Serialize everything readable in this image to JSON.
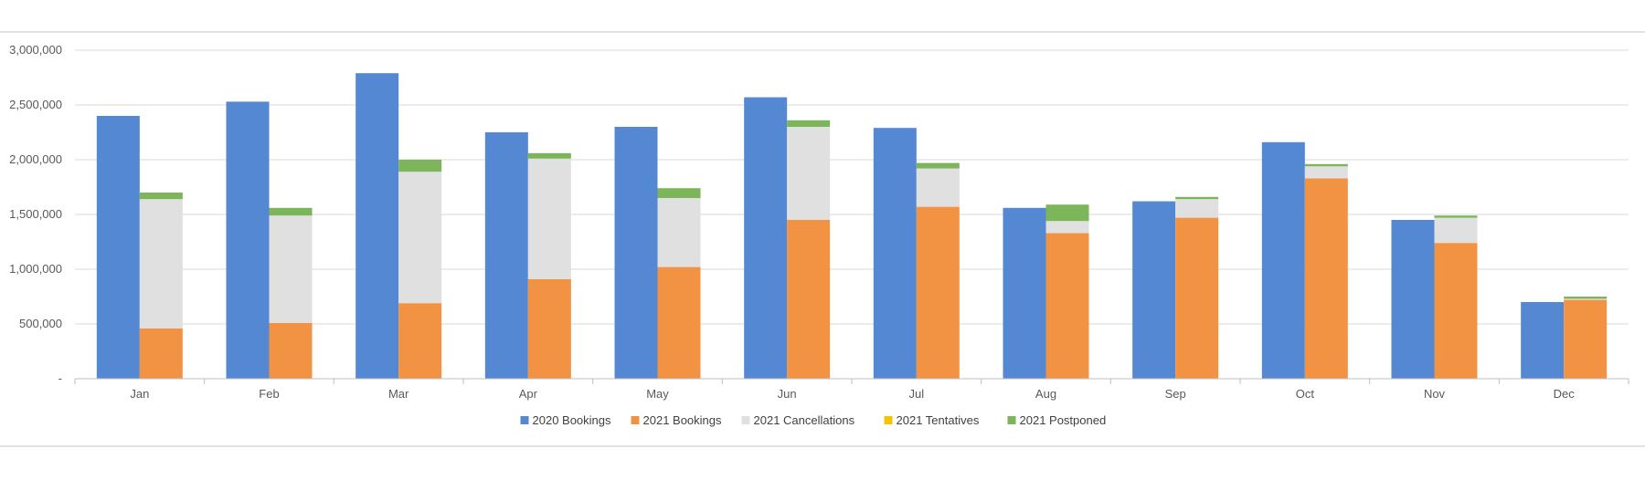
{
  "chart_data": {
    "type": "bar",
    "stacked_groups": true,
    "categories": [
      "Jan",
      "Feb",
      "Mar",
      "Apr",
      "May",
      "Jun",
      "Jul",
      "Aug",
      "Sep",
      "Oct",
      "Nov",
      "Dec"
    ],
    "ylim": [
      0,
      3000000
    ],
    "yticks": [
      0,
      500000,
      1000000,
      1500000,
      2000000,
      2500000,
      3000000
    ],
    "ytick_labels": [
      "-",
      "500,000",
      "1,000,000",
      "1,500,000",
      "2,000,000",
      "2,500,000",
      "3,000,000"
    ],
    "grid": true,
    "legend_position": "bottom",
    "series": [
      {
        "name": "2020 Bookings",
        "stack": "2020",
        "color": "#5588d3",
        "values": [
          2400000,
          2530000,
          2790000,
          2250000,
          2300000,
          2570000,
          2290000,
          1560000,
          1620000,
          2160000,
          1450000,
          700000
        ]
      },
      {
        "name": "2021 Bookings",
        "stack": "2021",
        "color": "#f29344",
        "values": [
          460000,
          510000,
          690000,
          910000,
          1020000,
          1450000,
          1570000,
          1330000,
          1470000,
          1830000,
          1240000,
          720000
        ]
      },
      {
        "name": "2021 Cancellations",
        "stack": "2021",
        "color": "#e0e0e0",
        "values": [
          1180000,
          980000,
          1200000,
          1100000,
          630000,
          850000,
          350000,
          110000,
          170000,
          110000,
          230000,
          10000
        ]
      },
      {
        "name": "2021 Tentatives",
        "stack": "2021",
        "color": "#f2c500",
        "values": [
          0,
          0,
          0,
          0,
          0,
          0,
          0,
          0,
          0,
          0,
          0,
          0
        ]
      },
      {
        "name": "2021 Postponed",
        "stack": "2021",
        "color": "#7db55a",
        "values": [
          60000,
          70000,
          110000,
          50000,
          90000,
          60000,
          50000,
          150000,
          20000,
          20000,
          20000,
          20000
        ]
      }
    ]
  }
}
